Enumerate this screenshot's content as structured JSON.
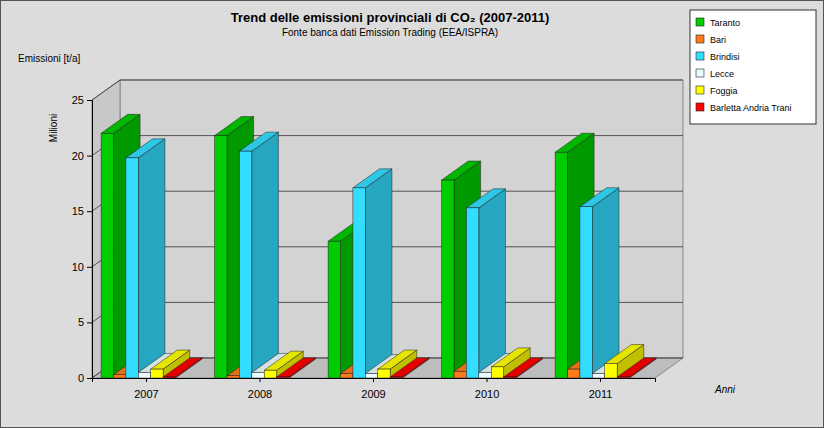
{
  "chart_data": {
    "type": "bar",
    "title": "Trend delle emissioni provinciali di CO₂ (2007-2011)",
    "subtitle": "Fonte banca dati Emission Trading (EEA/ISPRA)",
    "y_label": "Emissioni [t/a]",
    "y_unit_label": "Milioni",
    "x_label": "Anni",
    "categories": [
      "2007",
      "2008",
      "2009",
      "2010",
      "2011"
    ],
    "series": [
      {
        "name": "Taranto",
        "color": "#00cc00",
        "values": [
          22.0,
          21.8,
          12.3,
          17.8,
          20.3
        ]
      },
      {
        "name": "Bari",
        "color": "#ff7a1a",
        "values": [
          0.3,
          0.2,
          0.4,
          0.6,
          0.8
        ]
      },
      {
        "name": "Brindisi",
        "color": "#33ddff",
        "values": [
          19.8,
          20.4,
          17.1,
          15.3,
          15.4
        ]
      },
      {
        "name": "Lecce",
        "color": "#eafcff",
        "values": [
          0.5,
          0.5,
          0.4,
          0.5,
          0.4
        ]
      },
      {
        "name": "Foggia",
        "color": "#ffff00",
        "values": [
          0.8,
          0.7,
          0.8,
          1.0,
          1.3
        ]
      },
      {
        "name": "Barletta Andria Trani",
        "color": "#ff0000",
        "values": [
          0.1,
          0.1,
          0.1,
          0.1,
          0.1
        ]
      }
    ],
    "ylim": [
      0,
      25
    ],
    "yticks": [
      0,
      5,
      10,
      15,
      20,
      25
    ],
    "grid": true,
    "legend": "top-right"
  }
}
